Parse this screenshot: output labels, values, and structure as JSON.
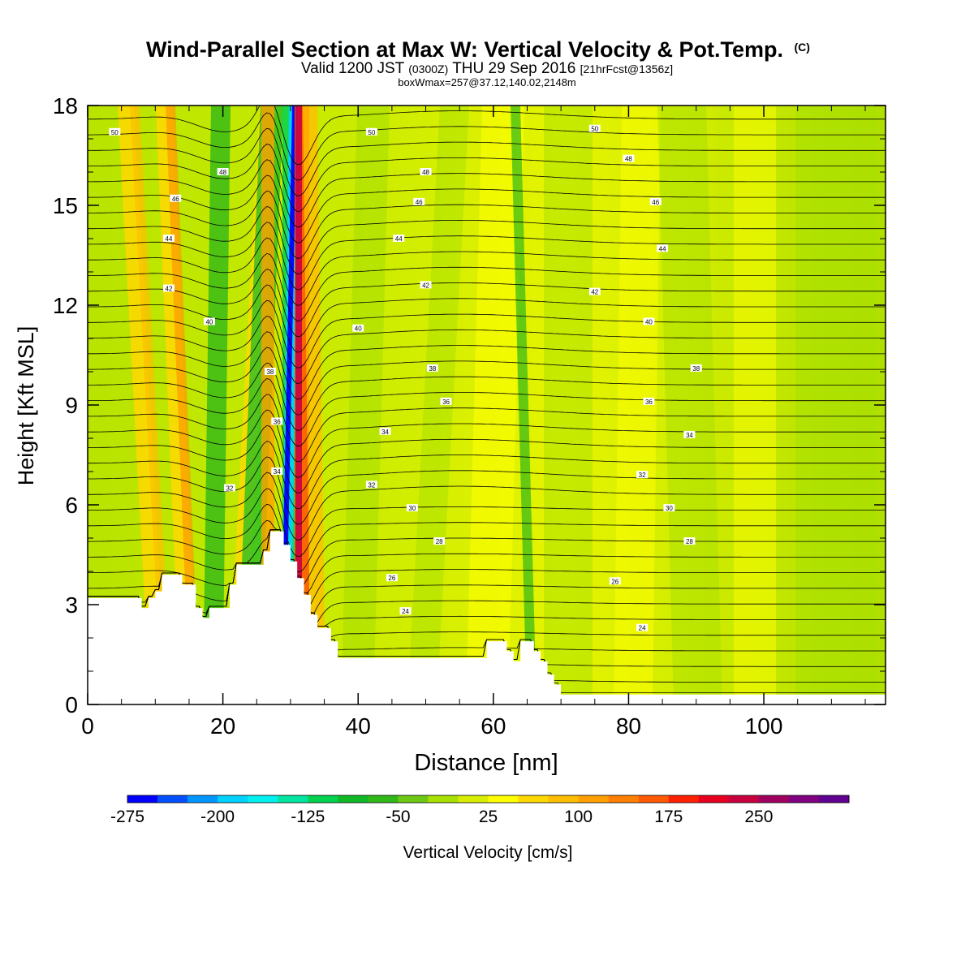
{
  "header": {
    "title": "Wind-Parallel Section at Max W: Vertical Velocity & Pot.Temp.",
    "title_mark": "(C)",
    "valid_a": "Valid 1200 JST",
    "valid_b": "(0300Z)",
    "valid_c": "THU 29 Sep 2016",
    "valid_d": "[21hrFcst@1356z]",
    "box_line": "boxWmax=257@37.12,140.02,2148m"
  },
  "chart_data": {
    "type": "heatmap",
    "xlabel": "Distance [nm]",
    "ylabel": "Height [Kft MSL]",
    "xlim": [
      0,
      118
    ],
    "ylim": [
      0,
      18
    ],
    "x_ticks": [
      0,
      20,
      40,
      60,
      80,
      100
    ],
    "y_ticks": [
      0,
      3,
      6,
      9,
      12,
      15,
      18
    ],
    "colorbar": {
      "label": "Vertical Velocity [cm/s]",
      "tick_labels": [
        "-275",
        "-200",
        "-125",
        "-50",
        "25",
        "100",
        "175",
        "250"
      ],
      "colors": [
        "#0000ff",
        "#0050ff",
        "#0096ff",
        "#00d2ff",
        "#00f0f0",
        "#00e6a0",
        "#00d250",
        "#10b828",
        "#30b818",
        "#6cc814",
        "#a8e000",
        "#d8ee00",
        "#ffff00",
        "#ffd800",
        "#ffbe00",
        "#ffa000",
        "#ff8000",
        "#ff5a00",
        "#ff2000",
        "#e80020",
        "#c80040",
        "#a00060",
        "#800080",
        "#600090"
      ]
    },
    "theta_labels": [
      "50",
      "48",
      "46",
      "44",
      "42",
      "40",
      "38",
      "36",
      "34",
      "32",
      "30",
      "28",
      "26",
      "24"
    ],
    "terrain_profile": [
      [
        0,
        3.2
      ],
      [
        8,
        3.2
      ],
      [
        8,
        2.9
      ],
      [
        9,
        2.9
      ],
      [
        9,
        3.2
      ],
      [
        10,
        3.2
      ],
      [
        10,
        3.4
      ],
      [
        11,
        3.4
      ],
      [
        11,
        3.9
      ],
      [
        14,
        3.9
      ],
      [
        14,
        3.6
      ],
      [
        16,
        3.6
      ],
      [
        16,
        2.9
      ],
      [
        17,
        2.9
      ],
      [
        17,
        2.6
      ],
      [
        18,
        2.6
      ],
      [
        18,
        2.9
      ],
      [
        21,
        2.9
      ],
      [
        21,
        3.6
      ],
      [
        22,
        3.6
      ],
      [
        22,
        4.2
      ],
      [
        26,
        4.2
      ],
      [
        26,
        4.6
      ],
      [
        27,
        4.6
      ],
      [
        27,
        5.2
      ],
      [
        29,
        5.2
      ],
      [
        29,
        4.8
      ],
      [
        30,
        4.8
      ],
      [
        30,
        4.3
      ],
      [
        31,
        4.3
      ],
      [
        31,
        3.8
      ],
      [
        32,
        3.8
      ],
      [
        32,
        3.3
      ],
      [
        33,
        3.3
      ],
      [
        33,
        2.7
      ],
      [
        34,
        2.7
      ],
      [
        34,
        2.3
      ],
      [
        36,
        2.3
      ],
      [
        36,
        1.9
      ],
      [
        37,
        1.9
      ],
      [
        37,
        1.4
      ],
      [
        59,
        1.4
      ],
      [
        59,
        1.9
      ],
      [
        62,
        1.9
      ],
      [
        62,
        1.6
      ],
      [
        63,
        1.6
      ],
      [
        63,
        1.3
      ],
      [
        64,
        1.3
      ],
      [
        64,
        1.9
      ],
      [
        66,
        1.9
      ],
      [
        66,
        1.6
      ],
      [
        67,
        1.6
      ],
      [
        67,
        1.3
      ],
      [
        68,
        1.3
      ],
      [
        68,
        0.9
      ],
      [
        69,
        0.9
      ],
      [
        69,
        0.6
      ],
      [
        70,
        0.6
      ],
      [
        70,
        0.3
      ],
      [
        118,
        0.3
      ]
    ]
  }
}
